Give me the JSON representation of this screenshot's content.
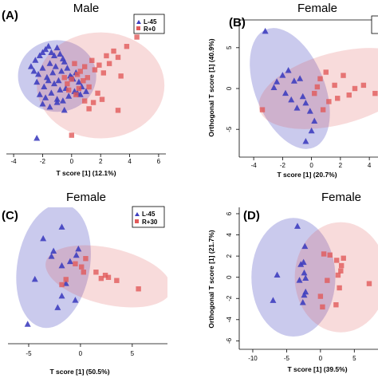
{
  "chart_data": [
    {
      "panel": "(A)",
      "type": "scatter",
      "title": "Male",
      "xlabel": "T score [1] (12.1%)",
      "ylabel": "",
      "xticks": [
        "-4",
        "-2",
        "0",
        "2",
        "4",
        "6"
      ],
      "yticks": [],
      "legend": [
        "L-45",
        "R+0"
      ],
      "legend_position": "top-right",
      "xlim": [
        -4.5,
        6.5
      ],
      "ylim": [
        -4.5,
        4.2
      ],
      "ellipses": [
        {
          "series": 0,
          "cx": -1.0,
          "cy": 0.6,
          "rx": 2.7,
          "ry": 2.3,
          "rotate": 0
        },
        {
          "series": 1,
          "cx": 2.0,
          "cy": 0.0,
          "rx": 4.4,
          "ry": 3.4,
          "rotate": 0
        }
      ],
      "series": [
        {
          "name": "L-45",
          "color": "#3f3fbf",
          "marker": "triangle",
          "x": [
            -2.8,
            -2.5,
            -2.2,
            -2.0,
            -1.8,
            -1.6,
            -1.4,
            -1.2,
            -1.0,
            -0.8,
            -0.6,
            -2.6,
            -2.3,
            -2.0,
            -1.7,
            -1.5,
            -1.3,
            -1.1,
            -0.9,
            -0.7,
            -0.5,
            -0.3,
            -0.1,
            0.1,
            0.3,
            0.5,
            0.7,
            -2.4,
            -1.9,
            -1.6,
            -1.2,
            -0.8,
            -0.4,
            0.0,
            0.4,
            -2.2,
            -1.8,
            -1.4,
            -1.0,
            -0.6,
            -0.2,
            0.2,
            0.6,
            1.0,
            -2.0,
            -1.5,
            -1.0,
            -0.5,
            -2.4
          ],
          "y": [
            1.2,
            1.6,
            1.9,
            2.1,
            2.3,
            2.5,
            2.1,
            1.9,
            2.4,
            2.0,
            1.7,
            0.9,
            0.7,
            1.1,
            0.5,
            1.4,
            0.8,
            1.2,
            0.3,
            0.9,
            1.5,
            1.1,
            0.6,
            0.4,
            0.8,
            0.2,
            -0.1,
            0.2,
            -0.1,
            0.3,
            0.1,
            -0.3,
            -0.2,
            0.5,
            -0.5,
            -0.6,
            -0.8,
            -0.5,
            -0.9,
            -1.0,
            -0.7,
            -0.4,
            -0.6,
            -0.4,
            -1.2,
            -1.4,
            -1.1,
            -1.6,
            -3.4
          ]
        },
        {
          "name": "R+0",
          "color": "#e15a5a",
          "marker": "square",
          "x": [
            4.5,
            3.8,
            2.9,
            3.2,
            2.4,
            2.6,
            1.9,
            1.6,
            1.4,
            2.2,
            3.4,
            0.9,
            1.1,
            0.6,
            0.8,
            0.4,
            0.2,
            0.0,
            -0.3,
            -0.5,
            0.5,
            1.2,
            1.8,
            2.1,
            0.3,
            -0.2,
            0.9,
            1.5,
            1.2,
            3.2,
            0.0
          ],
          "y": [
            3.1,
            2.5,
            2.2,
            1.8,
            1.9,
            1.4,
            1.3,
            1.0,
            1.6,
            0.8,
            0.6,
            1.2,
            0.5,
            0.9,
            0.3,
            0.7,
            1.4,
            0.4,
            0.1,
            0.5,
            -0.2,
            -0.1,
            -0.5,
            -0.9,
            -0.6,
            -0.3,
            -1.0,
            -1.1,
            -1.5,
            -1.6,
            -3.2
          ]
        }
      ]
    },
    {
      "panel": "(B)",
      "type": "scatter",
      "title": "Female",
      "xlabel": "T score [1] (20.7%)",
      "ylabel": "Orthogonal T score [1] (40.9%)",
      "xticks": [
        "-4",
        "-2",
        "0",
        "2",
        "4"
      ],
      "yticks": [
        "-5",
        "0",
        "5"
      ],
      "legend": [],
      "legend_position": "top-right",
      "xlim": [
        -5,
        4.6
      ],
      "ylim": [
        -8.4,
        8.4
      ],
      "ellipses": [
        {
          "series": 0,
          "cx": -1.5,
          "cy": 0.0,
          "rx": 2.4,
          "ry": 7.8,
          "rotate": -22
        },
        {
          "series": 1,
          "cx": 1.8,
          "cy": 0.0,
          "rx": 5.6,
          "ry": 4.4,
          "rotate": -15
        }
      ],
      "series": [
        {
          "name": "L-45",
          "color": "#3f3fbf",
          "marker": "triangle",
          "x": [
            -3.2,
            -2.4,
            -2.0,
            -1.6,
            -1.2,
            -0.8,
            -0.6,
            -1.8,
            -1.4,
            -0.4,
            -0.1,
            0.2,
            -1.0,
            -2.6,
            0.0,
            -0.4
          ],
          "y": [
            7.0,
            0.8,
            1.6,
            2.2,
            0.9,
            1.2,
            -1.0,
            -0.6,
            -1.4,
            -1.8,
            -2.8,
            -4.0,
            -2.4,
            0.1,
            -5.2,
            -6.5
          ]
        },
        {
          "name": "R+0",
          "color": "#e15a5a",
          "marker": "square",
          "x": [
            0.6,
            1.0,
            1.6,
            2.2,
            2.6,
            3.0,
            3.6,
            4.4,
            1.2,
            0.8,
            -3.4,
            0.4,
            1.8,
            0.2
          ],
          "y": [
            1.2,
            2.0,
            0.4,
            1.6,
            -0.8,
            0.0,
            0.4,
            -0.6,
            -1.6,
            -2.6,
            -2.6,
            0.2,
            -1.2,
            -0.6
          ]
        }
      ]
    },
    {
      "panel": "(C)",
      "type": "scatter",
      "title": "Female",
      "xlabel": "T score [1] (50.5%)",
      "ylabel": "",
      "xticks": [
        "-5",
        "0",
        "5"
      ],
      "yticks": [],
      "legend": [
        "L-45",
        "R+30"
      ],
      "legend_position": "top-right",
      "xlim": [
        -7,
        8.4
      ],
      "ylim": [
        -7.6,
        5.6
      ],
      "ellipses": [
        {
          "series": 0,
          "cx": -2.6,
          "cy": 0.0,
          "rx": 3.5,
          "ry": 6.0,
          "rotate": 10
        },
        {
          "series": 1,
          "cx": 2.7,
          "cy": -1.0,
          "rx": 6.2,
          "ry": 2.7,
          "rotate": 13
        }
      ],
      "series": [
        {
          "name": "L-45",
          "color": "#3f3fbf",
          "marker": "triangle",
          "x": [
            -1.8,
            -3.6,
            -2.6,
            -2.8,
            -0.2,
            -1.0,
            -0.4,
            -1.8,
            -4.4,
            -1.4,
            -1.8,
            -0.5,
            -2.2,
            -5.1
          ],
          "y": [
            3.7,
            2.6,
            1.4,
            0.9,
            1.6,
            0.4,
            1.0,
            0.0,
            -1.3,
            -1.7,
            -2.9,
            -3.3,
            -4.0,
            -5.6
          ]
        },
        {
          "name": "R+30",
          "color": "#e15a5a",
          "marker": "square",
          "x": [
            -0.5,
            0.1,
            0.5,
            1.5,
            2.0,
            2.4,
            2.7,
            3.5,
            5.6,
            -1.4,
            -1.8,
            0.3
          ],
          "y": [
            0.2,
            -0.1,
            0.7,
            -0.6,
            -1.2,
            -0.9,
            -1.1,
            -1.4,
            -2.2,
            -1.3,
            -1.8,
            -0.6
          ]
        }
      ]
    },
    {
      "panel": "(D)",
      "type": "scatter",
      "title": "Female",
      "xlabel": "T score [1] (39.5%)",
      "ylabel": "Orthogonal T score [1] (21.7%)",
      "xticks": [
        "-10",
        "-5",
        "0",
        "5"
      ],
      "yticks": [
        "6",
        "4",
        "2",
        "0",
        "-2",
        "-4",
        "-6"
      ],
      "legend": [],
      "legend_position": "top-right",
      "xlim": [
        -12,
        8.5
      ],
      "ylim": [
        -6.8,
        6.6
      ],
      "ellipses": [
        {
          "series": 0,
          "cx": -4.0,
          "cy": 0.0,
          "rx": 6.2,
          "ry": 5.6,
          "rotate": 0
        },
        {
          "series": 1,
          "cx": 3.0,
          "cy": 0.0,
          "rx": 6.8,
          "ry": 5.2,
          "rotate": 0
        }
      ],
      "series": [
        {
          "name": "L-45",
          "color": "#3f3fbf",
          "marker": "triangle",
          "x": [
            -3.4,
            -2.3,
            -2.5,
            -2.9,
            -2.4,
            -6.4,
            -2.2,
            -3.1,
            -2.2,
            -7.0,
            -2.4,
            -2.6
          ],
          "y": [
            4.8,
            2.9,
            1.4,
            1.2,
            0.4,
            0.2,
            -0.1,
            -0.3,
            -1.4,
            -2.2,
            -1.7,
            -2.4
          ]
        },
        {
          "name": "R+0",
          "color": "#e15a5a",
          "marker": "square",
          "x": [
            0.5,
            1.4,
            2.4,
            3.4,
            3.1,
            3.0,
            2.6,
            7.2,
            0.0,
            0.3,
            2.3,
            2.8,
            1.0
          ],
          "y": [
            2.2,
            2.1,
            1.6,
            1.8,
            1.1,
            0.6,
            0.2,
            -0.6,
            -1.8,
            -2.8,
            -2.6,
            -1.0,
            -0.3
          ]
        }
      ]
    }
  ]
}
